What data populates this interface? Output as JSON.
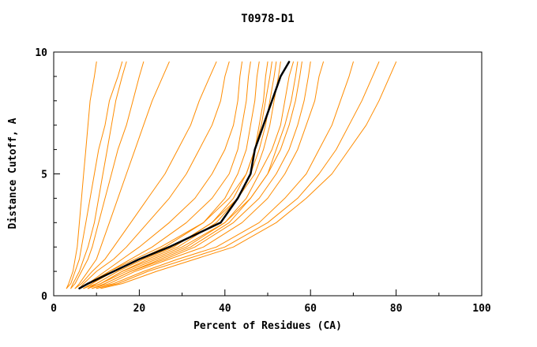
{
  "title": "T0978-D1",
  "chart_data": {
    "type": "line",
    "title": "T0978-D1",
    "xlabel": "Percent of Residues (CA)",
    "ylabel": "Distance Cutoff, A",
    "xlim": [
      0,
      100
    ],
    "ylim": [
      0,
      10
    ],
    "xticks": [
      0,
      20,
      40,
      60,
      80,
      100
    ],
    "yticks": [
      0,
      5,
      10
    ],
    "x_minor_step": 10,
    "y_minor_step": 1,
    "grid": false,
    "legend": "none",
    "colors": {
      "model_line": "#ff8c00",
      "reference_line": "#000000",
      "axis": "#000000"
    },
    "y_levels": [
      0.3,
      0.5,
      1,
      1.5,
      2,
      3,
      4,
      5,
      6,
      7,
      8,
      9,
      9.6
    ],
    "series": [
      {
        "name": "model-01",
        "color": "#ff8c00",
        "width": 1,
        "x": [
          3,
          3.5,
          4.5,
          5,
          5.5,
          6,
          6.5,
          7,
          7.5,
          8,
          8.5,
          9.5,
          10
        ]
      },
      {
        "name": "model-02",
        "color": "#ff8c00",
        "width": 1,
        "x": [
          3,
          4,
          5,
          6,
          6.5,
          7.5,
          8.5,
          9.5,
          10.5,
          12,
          13,
          15,
          16
        ]
      },
      {
        "name": "model-03",
        "color": "#ff8c00",
        "width": 1,
        "x": [
          4,
          4.5,
          6,
          7,
          8,
          9.5,
          10.5,
          11.5,
          12.5,
          13.5,
          14.5,
          16,
          17
        ]
      },
      {
        "name": "model-04",
        "color": "#ff8c00",
        "width": 1,
        "x": [
          4,
          5,
          6.5,
          8,
          9,
          10.5,
          12,
          13.5,
          15,
          17,
          18.5,
          20,
          21
        ]
      },
      {
        "name": "model-05",
        "color": "#ff8c00",
        "width": 1,
        "x": [
          5,
          6,
          8,
          10,
          11,
          13,
          15,
          17,
          19,
          21,
          23,
          25.5,
          27
        ]
      },
      {
        "name": "model-06",
        "color": "#ff8c00",
        "width": 1,
        "x": [
          5,
          6.5,
          9,
          12,
          14,
          18,
          22,
          26,
          29,
          32,
          34,
          36.5,
          38
        ]
      },
      {
        "name": "model-07",
        "color": "#ff8c00",
        "width": 1,
        "x": [
          6,
          7,
          10,
          14,
          17,
          22,
          27,
          31,
          34,
          37,
          39,
          40,
          41
        ]
      },
      {
        "name": "model-08",
        "color": "#ff8c00",
        "width": 1,
        "x": [
          6,
          8,
          12,
          16,
          20,
          27,
          33,
          37,
          40,
          42,
          43,
          43.5,
          44
        ]
      },
      {
        "name": "model-09",
        "color": "#ff8c00",
        "width": 1,
        "x": [
          7,
          9,
          13,
          18,
          23,
          31,
          37,
          41,
          43,
          44,
          45,
          45.5,
          46
        ]
      },
      {
        "name": "model-10",
        "color": "#ff8c00",
        "width": 1,
        "x": [
          7,
          9,
          14,
          20,
          26,
          35,
          40,
          43,
          45,
          46,
          47,
          47.5,
          48
        ]
      },
      {
        "name": "model-11",
        "color": "#ff8c00",
        "width": 1,
        "x": [
          8,
          10,
          15,
          21,
          28,
          37,
          42,
          45,
          47,
          48,
          49,
          49.5,
          50
        ]
      },
      {
        "name": "model-12",
        "color": "#ff8c00",
        "width": 1,
        "x": [
          6,
          8,
          13,
          19,
          25,
          35,
          41,
          45,
          47,
          48.5,
          49.5,
          50.5,
          51
        ]
      },
      {
        "name": "model-13",
        "color": "#ff8c00",
        "width": 1,
        "x": [
          8,
          11,
          16,
          22,
          29,
          38,
          43,
          46,
          48,
          49.5,
          50.5,
          51.5,
          52
        ]
      },
      {
        "name": "model-14",
        "color": "#ff8c00",
        "width": 1,
        "x": [
          7,
          10,
          15,
          21,
          28,
          37,
          43,
          47,
          49,
          50.5,
          51.5,
          52.5,
          53
        ]
      },
      {
        "name": "model-15",
        "color": "#ff8c00",
        "width": 1,
        "x": [
          8,
          11,
          17,
          24,
          31,
          40,
          45,
          48,
          51,
          53,
          54,
          55,
          56
        ]
      },
      {
        "name": "model-16",
        "color": "#ff8c00",
        "width": 1,
        "x": [
          9,
          12,
          18,
          25,
          32,
          41,
          46,
          50,
          52,
          54,
          55.5,
          56.5,
          57
        ]
      },
      {
        "name": "model-17",
        "color": "#ff8c00",
        "width": 1,
        "x": [
          8,
          11,
          16,
          23,
          30,
          40,
          46,
          50,
          53,
          55,
          56.5,
          57.5,
          58
        ]
      },
      {
        "name": "model-18",
        "color": "#ff8c00",
        "width": 1,
        "x": [
          9,
          12,
          18,
          26,
          33,
          42,
          48,
          52,
          55,
          57,
          58.5,
          59.5,
          60
        ]
      },
      {
        "name": "model-19",
        "color": "#ff8c00",
        "width": 1,
        "x": [
          9,
          13,
          19,
          27,
          35,
          44,
          50,
          54,
          57,
          59,
          61,
          62,
          63
        ]
      },
      {
        "name": "model-20",
        "color": "#ff8c00",
        "width": 1,
        "x": [
          10,
          14,
          21,
          29,
          38,
          48,
          54,
          59,
          62,
          65,
          67,
          69,
          70
        ]
      },
      {
        "name": "model-21",
        "color": "#ff8c00",
        "width": 1,
        "x": [
          10,
          15,
          22,
          31,
          40,
          50,
          57,
          62,
          66,
          69,
          72,
          74.5,
          76
        ]
      },
      {
        "name": "model-22",
        "color": "#ff8c00",
        "width": 1,
        "x": [
          11,
          16,
          24,
          33,
          42,
          52,
          59,
          65,
          69,
          73,
          76,
          78.5,
          80
        ]
      },
      {
        "name": "reference-curve",
        "color": "#000000",
        "width": 2.5,
        "x": [
          6,
          8,
          14,
          20,
          27,
          39,
          43,
          46,
          47,
          49,
          51,
          53,
          55
        ]
      }
    ]
  }
}
